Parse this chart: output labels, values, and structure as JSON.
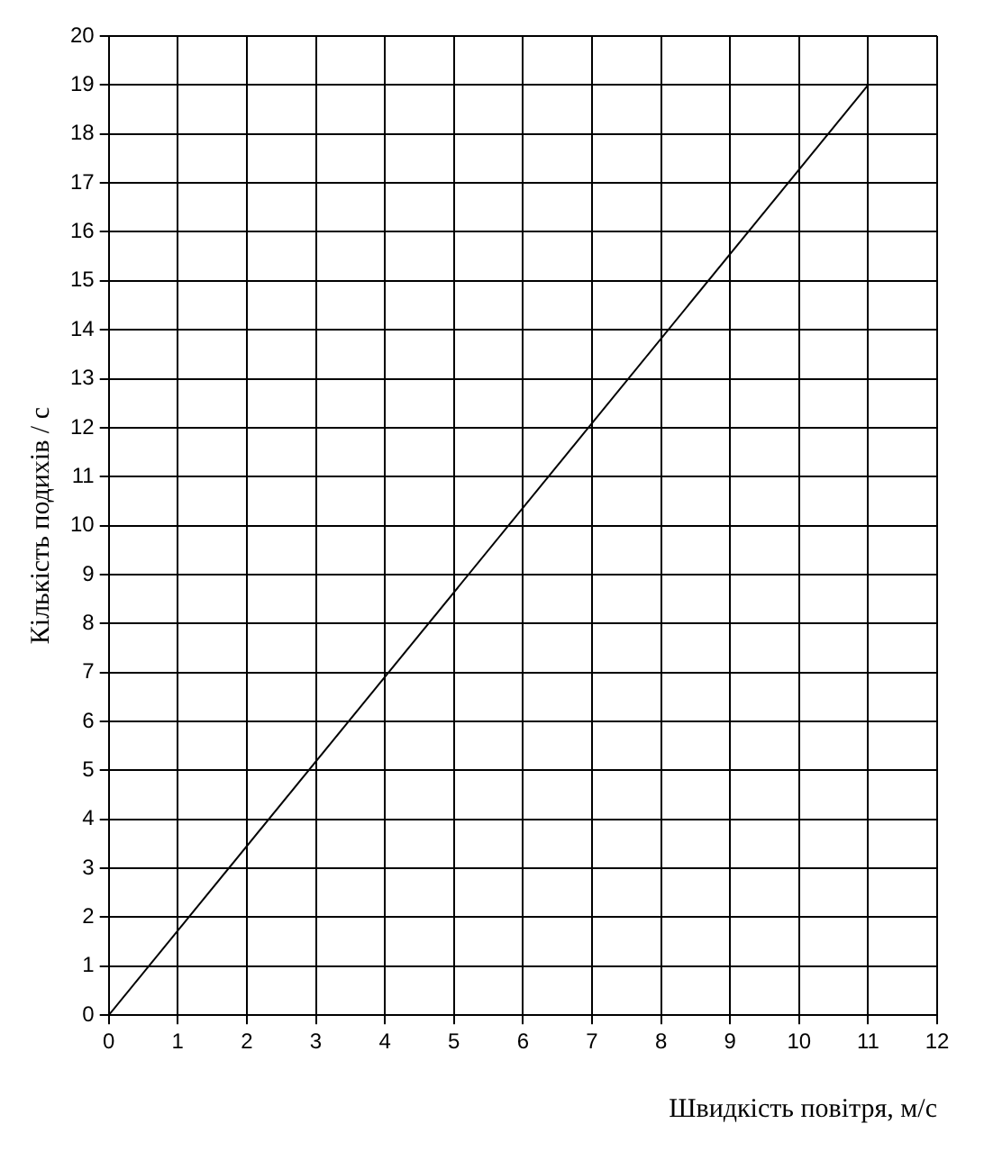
{
  "chart_data": {
    "type": "line",
    "xlabel": "Швидкість повітря, м/с",
    "ylabel": "Кількість подихів / с",
    "x": [
      0,
      11
    ],
    "series": [
      {
        "color": "#000000",
        "values": [
          0,
          19
        ]
      }
    ],
    "xlim": [
      0,
      12
    ],
    "xticks": [
      0,
      1,
      2,
      3,
      4,
      5,
      6,
      7,
      8,
      9,
      10,
      11,
      12
    ],
    "ylim": [
      0,
      20
    ],
    "yticks": [
      0,
      1,
      2,
      3,
      4,
      5,
      6,
      7,
      8,
      9,
      10,
      11,
      12,
      13,
      14,
      15,
      16,
      17,
      18,
      19,
      20
    ],
    "grid": true,
    "legend": false,
    "marker": "none",
    "line_style": "solid"
  }
}
